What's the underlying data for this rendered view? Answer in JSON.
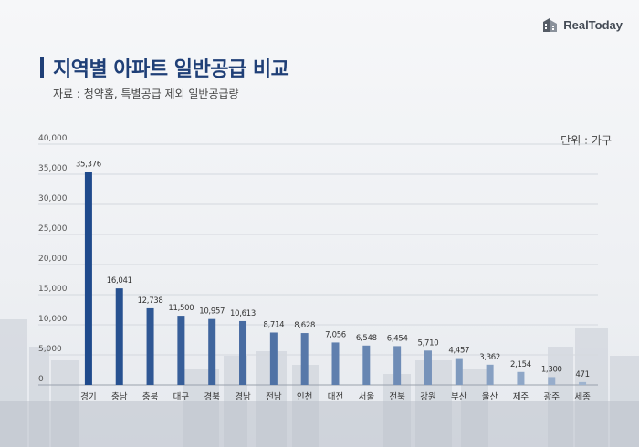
{
  "brand": {
    "name": "RealToday",
    "icon": "building-logo-icon"
  },
  "title": "지역별 아파트 일반공급 비교",
  "source": "자료 : 청약홈, 특별공급 제외 일반공급량",
  "unit": "단위 : 가구",
  "colors": {
    "bar_dark": "#1f4a8c",
    "bar_light": "#9fb4cf",
    "title": "#1f3f77"
  },
  "chart_data": {
    "type": "bar",
    "categories": [
      "경기",
      "충남",
      "충북",
      "대구",
      "경북",
      "경남",
      "전남",
      "인천",
      "대전",
      "서울",
      "전북",
      "강원",
      "부산",
      "울산",
      "제주",
      "광주",
      "세종"
    ],
    "values": [
      35376,
      16041,
      12738,
      11500,
      10957,
      10613,
      8714,
      8628,
      7056,
      6548,
      6454,
      5710,
      4457,
      3362,
      2154,
      1300,
      471
    ],
    "value_labels": [
      "35,376",
      "16,041",
      "12,738",
      "11,500",
      "10,957",
      "10,613",
      "8,714",
      "8,628",
      "7,056",
      "6,548",
      "6,454",
      "5,710",
      "4,457",
      "3,362",
      "2,154",
      "1,300",
      "471"
    ],
    "yticks": [
      "0",
      "5,000",
      "10,000",
      "15,000",
      "20,000",
      "25,000",
      "30,000",
      "35,000",
      "40,000"
    ],
    "ylim": [
      0,
      40000
    ],
    "grid": true,
    "legend": "none"
  }
}
